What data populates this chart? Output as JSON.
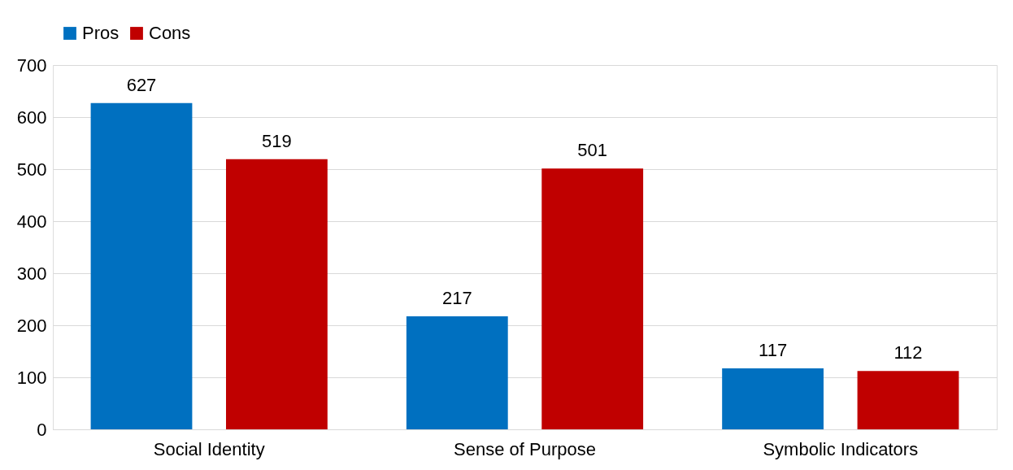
{
  "chart_data": {
    "type": "bar",
    "categories": [
      "Social Identity",
      "Sense of Purpose",
      "Symbolic Indicators"
    ],
    "series": [
      {
        "name": "Pros",
        "color": "#0070c0",
        "values": [
          627,
          217,
          117
        ]
      },
      {
        "name": "Cons",
        "color": "#c00000",
        "values": [
          519,
          501,
          112
        ]
      }
    ],
    "ylim": [
      0,
      700
    ],
    "yticks": [
      0,
      100,
      200,
      300,
      400,
      500,
      600,
      700
    ],
    "grid": "y",
    "legend": "top",
    "data_labels": true
  }
}
